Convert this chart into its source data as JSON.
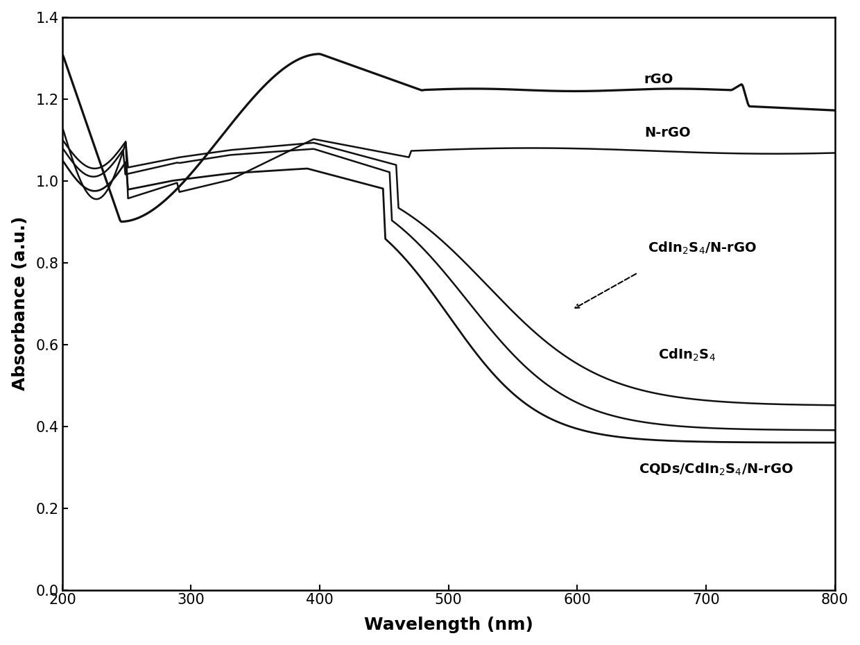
{
  "xlim": [
    200,
    800
  ],
  "ylim": [
    0.0,
    1.4
  ],
  "xlabel": "Wavelength (nm)",
  "ylabel": "Absorbance (a.u.)",
  "xlabel_fontsize": 18,
  "ylabel_fontsize": 18,
  "tick_fontsize": 15,
  "background_color": "#ffffff",
  "line_color": "#111111",
  "yticks": [
    0.0,
    0.2,
    0.4,
    0.6,
    0.8,
    1.0,
    1.2,
    1.4
  ],
  "xticks": [
    200,
    300,
    400,
    500,
    600,
    700,
    800
  ]
}
